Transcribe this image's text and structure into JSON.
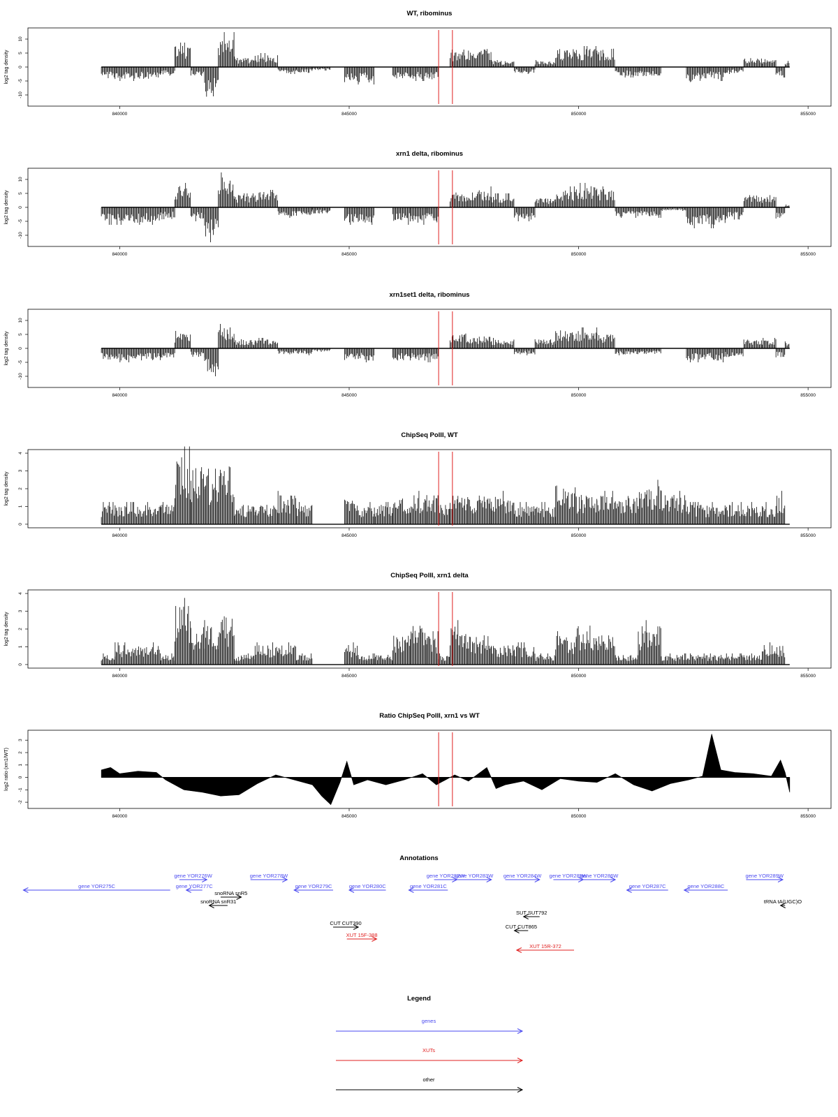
{
  "chart_data": [
    {
      "type": "bar",
      "title": "WT, ribominus",
      "ylabel": "log2 tag density",
      "ylim": [
        -14,
        14
      ],
      "yticks": [
        -10,
        -5,
        0,
        5,
        10
      ],
      "xlim": [
        838000,
        855500
      ],
      "xticks": [
        "840000",
        "845000",
        "850000",
        "855000"
      ],
      "vlines": [
        846950,
        847250
      ],
      "series": [
        {
          "x": [
            839600,
            840200,
            840800,
            841000,
            841400,
            841700,
            842000,
            842300,
            842700,
            843200,
            843700,
            844000,
            844400,
            844800,
            845000,
            845400,
            845700,
            846200,
            846500,
            846900,
            847000,
            847400,
            847800,
            848400,
            848800,
            849300,
            849700,
            850200,
            850600,
            851000,
            851600,
            852000,
            852700,
            853000,
            853400,
            853800,
            854200,
            854400,
            854600
          ],
          "values": [
            -4,
            -4,
            -4,
            -3,
            7,
            -3,
            -10,
            10,
            3,
            4,
            -2,
            -2,
            -1,
            0,
            -5,
            -5,
            0,
            -4,
            -4,
            -4,
            0,
            5,
            6,
            2,
            -2,
            2,
            6,
            6,
            6,
            -3,
            -3,
            0,
            -5,
            -4,
            -2,
            3,
            3,
            -3,
            2
          ]
        }
      ]
    },
    {
      "type": "bar",
      "title": "xrn1 delta, ribominus",
      "ylabel": "log2 tag density",
      "ylim": [
        -14,
        14
      ],
      "yticks": [
        -10,
        -5,
        0,
        5,
        10
      ],
      "xlim": [
        838000,
        855500
      ],
      "xticks": [
        "840000",
        "845000",
        "850000",
        "855000"
      ],
      "vlines": [
        846950,
        847250
      ],
      "series": [
        {
          "x": [
            839600,
            840200,
            840800,
            841000,
            841400,
            841700,
            842000,
            842300,
            842700,
            843200,
            843700,
            844000,
            844400,
            844800,
            845000,
            845400,
            845700,
            846200,
            846500,
            846900,
            847000,
            847400,
            847800,
            848400,
            848800,
            849300,
            849700,
            850200,
            850600,
            851000,
            851600,
            852000,
            852700,
            853000,
            853400,
            853800,
            854200,
            854400,
            854600
          ],
          "values": [
            -5,
            -5,
            -5,
            -4,
            7,
            -4,
            -10,
            10,
            4,
            5,
            -3,
            -3,
            -2,
            0,
            -5,
            -5,
            0,
            -5,
            -5,
            -5,
            0,
            5,
            6,
            4,
            -4,
            3,
            6,
            7,
            6,
            -3,
            -3,
            -1,
            -6,
            -6,
            -4,
            4,
            4,
            -4,
            1
          ]
        }
      ]
    },
    {
      "type": "bar",
      "title": "xrn1set1 delta, ribominus",
      "ylabel": "log2 tag density",
      "ylim": [
        -14,
        14
      ],
      "yticks": [
        -10,
        -5,
        0,
        5,
        10
      ],
      "xlim": [
        838000,
        855500
      ],
      "xticks": [
        "840000",
        "845000",
        "850000",
        "855000"
      ],
      "vlines": [
        846950,
        847250
      ],
      "series": [
        {
          "x": [
            839600,
            840200,
            840800,
            841000,
            841400,
            841700,
            842000,
            842300,
            842700,
            843200,
            843700,
            844000,
            844400,
            844800,
            845000,
            845400,
            845700,
            846200,
            846500,
            846900,
            847000,
            847400,
            847800,
            848400,
            848800,
            849300,
            849700,
            850200,
            850600,
            851000,
            851600,
            852000,
            852700,
            853000,
            853400,
            853800,
            854200,
            854400,
            854600
          ],
          "values": [
            -4,
            -4,
            -4,
            -3,
            5,
            -3,
            -8,
            7,
            3,
            3,
            -2,
            -2,
            -1,
            0,
            -4,
            -4,
            0,
            -4,
            -4,
            -4,
            0,
            5,
            4,
            3,
            -2,
            3,
            6,
            6,
            5,
            -2,
            -2,
            0,
            -4,
            -4,
            -3,
            3,
            3,
            -3,
            2
          ]
        }
      ]
    },
    {
      "type": "bar",
      "title": "ChipSeq PolII, WT",
      "ylabel": "log2 tag density",
      "ylim": [
        -0.2,
        4.2
      ],
      "yticks": [
        0,
        1,
        2,
        3,
        4
      ],
      "xlim": [
        838000,
        855500
      ],
      "xticks": [
        "840000",
        "845000",
        "850000",
        "855000"
      ],
      "vlines": [
        846950,
        847250
      ],
      "series": [
        {
          "x": [
            839600,
            840200,
            840800,
            841000,
            841400,
            841700,
            842000,
            842300,
            842700,
            843200,
            843700,
            844000,
            844400,
            844800,
            845000,
            845400,
            845700,
            846200,
            846500,
            846900,
            847000,
            847400,
            847800,
            848400,
            848800,
            849300,
            849700,
            850200,
            850600,
            851000,
            851600,
            852000,
            852700,
            853000,
            853400,
            853800,
            854200,
            854400,
            854600
          ],
          "values": [
            1,
            1,
            1,
            1,
            3.5,
            3,
            2.5,
            3,
            1,
            1,
            1.5,
            1,
            0,
            0,
            1.5,
            1,
            1,
            1.5,
            1.5,
            1.5,
            1,
            1.5,
            1.5,
            1.5,
            1,
            1,
            2,
            1.5,
            1.5,
            1.5,
            2,
            1.5,
            1,
            1,
            1,
            1,
            1,
            1.5,
            0
          ]
        }
      ]
    },
    {
      "type": "bar",
      "title": "ChipSeq PolII, xrn1 delta",
      "ylabel": "log2 tag density",
      "ylim": [
        -0.2,
        4.2
      ],
      "yticks": [
        0,
        1,
        2,
        3,
        4
      ],
      "xlim": [
        838000,
        855500
      ],
      "xticks": [
        "840000",
        "845000",
        "850000",
        "855000"
      ],
      "vlines": [
        846950,
        847250
      ],
      "series": [
        {
          "x": [
            839600,
            840200,
            840800,
            841000,
            841400,
            841700,
            842000,
            842300,
            842700,
            843200,
            843700,
            844000,
            844400,
            844800,
            845000,
            845400,
            845700,
            846200,
            846500,
            846900,
            847000,
            847400,
            847800,
            848400,
            848800,
            849300,
            849700,
            850200,
            850600,
            851000,
            851600,
            852000,
            852700,
            853000,
            853400,
            853800,
            854200,
            854400,
            854600
          ],
          "values": [
            0.5,
            1,
            1,
            0.5,
            3,
            2,
            2,
            2.5,
            0.5,
            1,
            1,
            0.5,
            0,
            0,
            1,
            0.5,
            0.5,
            1.5,
            2,
            1.5,
            0.5,
            2,
            1.5,
            1,
            1,
            0.5,
            1.5,
            2,
            1.5,
            0.5,
            2,
            0.5,
            0.5,
            0.5,
            0.5,
            0.5,
            1,
            1,
            0
          ]
        }
      ]
    },
    {
      "type": "area",
      "title": "Ratio ChipSeq PolII, xrn1 vs WT",
      "ylabel": "log2 ratio (xrn1/WT)",
      "ylim": [
        -2.5,
        3.8
      ],
      "yticks": [
        -2,
        -1,
        0,
        1,
        2,
        3
      ],
      "xlim": [
        838000,
        855500
      ],
      "xticks": [
        "840000",
        "845000",
        "850000",
        "855000"
      ],
      "vlines": [
        846950,
        847250
      ],
      "series": [
        {
          "x": [
            839600,
            839800,
            840000,
            840400,
            840800,
            841000,
            841400,
            841800,
            842200,
            842600,
            843000,
            843400,
            843800,
            844200,
            844400,
            844600,
            844800,
            844950,
            845100,
            845400,
            845800,
            846200,
            846600,
            846900,
            847000,
            847300,
            847600,
            848000,
            848200,
            848400,
            848800,
            849200,
            849600,
            850000,
            850400,
            850800,
            851200,
            851600,
            852000,
            852400,
            852700,
            852900,
            853100,
            853400,
            853800,
            854200,
            854400,
            854500,
            854600
          ],
          "values": [
            0.6,
            0.8,
            0.3,
            0.5,
            0.4,
            -0.2,
            -1.0,
            -1.2,
            -1.5,
            -1.4,
            -0.5,
            0.2,
            -0.2,
            -0.6,
            -1.5,
            -2.2,
            -0.4,
            1.3,
            -0.6,
            -0.2,
            -0.6,
            -0.2,
            0.3,
            -0.6,
            -0.4,
            0.2,
            -0.3,
            0.8,
            -0.9,
            -0.6,
            -0.3,
            -1.0,
            -0.1,
            -0.3,
            -0.4,
            0.3,
            -0.6,
            -1.1,
            -0.5,
            -0.2,
            0.1,
            3.5,
            0.6,
            0.4,
            0.3,
            0.1,
            1.4,
            0.4,
            -1.2
          ]
        }
      ]
    }
  ],
  "annotations": {
    "title": "Annotations",
    "features": [
      {
        "label": "gene YOR275C",
        "type": "gene",
        "strand": "-",
        "start": 837900,
        "end": 841100
      },
      {
        "label": "gene YOR276W",
        "type": "gene",
        "strand": "+",
        "start": 841300,
        "end": 841900
      },
      {
        "label": "gene YOR277C",
        "type": "gene",
        "strand": "-",
        "start": 841450,
        "end": 841800
      },
      {
        "label": "gene YOR278W",
        "type": "gene",
        "strand": "+",
        "start": 842850,
        "end": 843650
      },
      {
        "label": "snoRNA snR5",
        "type": "other",
        "strand": "+",
        "start": 842200,
        "end": 842650
      },
      {
        "label": "snoRNA snR31",
        "type": "other",
        "strand": "-",
        "start": 841950,
        "end": 842350
      },
      {
        "label": "gene YOR279C",
        "type": "gene",
        "strand": "-",
        "start": 843800,
        "end": 844650
      },
      {
        "label": "gene YOR280C",
        "type": "gene",
        "strand": "-",
        "start": 845000,
        "end": 845800
      },
      {
        "label": "gene YOR281C",
        "type": "gene",
        "strand": "-",
        "start": 846300,
        "end": 847150
      },
      {
        "label": "gene YOR282W",
        "type": "gene",
        "strand": "+",
        "start": 846850,
        "end": 847350
      },
      {
        "label": "gene YOR283W",
        "type": "gene",
        "strand": "+",
        "start": 847350,
        "end": 848100
      },
      {
        "label": "gene YOR284W",
        "type": "gene",
        "strand": "+",
        "start": 848400,
        "end": 849150
      },
      {
        "label": "gene YOR285W",
        "type": "gene",
        "strand": "+",
        "start": 849450,
        "end": 850100
      },
      {
        "label": "gene YOR286W",
        "type": "gene",
        "strand": "+",
        "start": 850100,
        "end": 850800
      },
      {
        "label": "gene YOR287C",
        "type": "gene",
        "strand": "-",
        "start": 851050,
        "end": 851950
      },
      {
        "label": "gene YOR288C",
        "type": "gene",
        "strand": "-",
        "start": 852300,
        "end": 853250
      },
      {
        "label": "gene YOR289W",
        "type": "gene",
        "strand": "+",
        "start": 853650,
        "end": 854450
      },
      {
        "label": "tRNA tA(UGC)O",
        "type": "other",
        "strand": "-",
        "start": 854400,
        "end": 854500
      },
      {
        "label": "CUT CUT390",
        "type": "other",
        "strand": "+",
        "start": 844650,
        "end": 845200
      },
      {
        "label": "XUT 15F-388",
        "type": "xut",
        "strand": "+",
        "start": 844950,
        "end": 845600
      },
      {
        "label": "SUT SUT792",
        "type": "other",
        "strand": "-",
        "start": 848800,
        "end": 849150
      },
      {
        "label": "CUT CUT865",
        "type": "other",
        "strand": "-",
        "start": 848600,
        "end": 848900
      },
      {
        "label": "XUT 15R-372",
        "type": "xut",
        "strand": "-",
        "start": 848650,
        "end": 849900
      }
    ]
  },
  "legend": {
    "title": "Legend",
    "items": [
      {
        "label": "genes",
        "color": "#4a4af0"
      },
      {
        "label": "XUTs",
        "color": "#e02020"
      },
      {
        "label": "other",
        "color": "#000000"
      }
    ]
  },
  "colors": {
    "gene": "#4a4af0",
    "xut": "#e02020",
    "other": "#000000",
    "vline": "#e02020",
    "axis": "#000000"
  }
}
